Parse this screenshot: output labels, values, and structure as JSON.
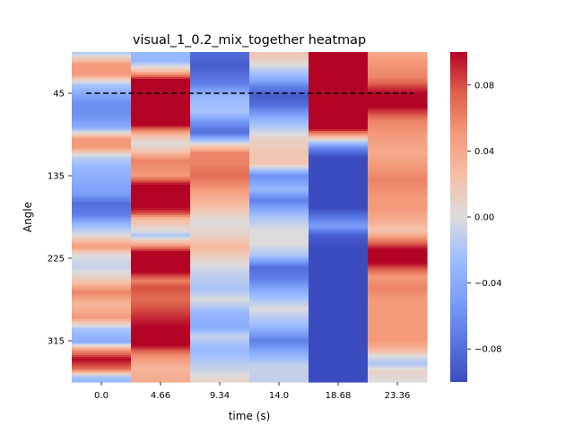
{
  "chart_data": {
    "type": "heatmap",
    "title": "visual_1_0.2_mix_together heatmap",
    "xlabel": "time (s)",
    "ylabel": "Angle",
    "x_tick_labels": [
      "0.0",
      "4.66",
      "9.34",
      "14.0",
      "18.68",
      "23.36"
    ],
    "y_tick_labels": [
      "45",
      "135",
      "225",
      "315"
    ],
    "colorbar_tick_labels": [
      "0.08",
      "0.04",
      "0.00",
      "−0.04",
      "−0.08"
    ],
    "colorbar_ticks": [
      0.08,
      0.04,
      0.0,
      -0.04,
      -0.08
    ],
    "value_range": [
      -0.1,
      0.1
    ],
    "colormap": "coolwarm",
    "reference_line_angle": 45,
    "angle_range": [
      0,
      360
    ],
    "columns": [
      {
        "x": 0.0,
        "angles": [
          0,
          14,
          24,
          36,
          55,
          68,
          82,
          95,
          104,
          114,
          125,
          140,
          155,
          165,
          178,
          188,
          200,
          212,
          222,
          235,
          250,
          262,
          276,
          290,
          302,
          316,
          325,
          335,
          346,
          354,
          360
        ],
        "values": [
          -0.02,
          0.05,
          0.05,
          -0.02,
          -0.06,
          -0.06,
          -0.04,
          0.05,
          0.05,
          -0.01,
          -0.03,
          -0.04,
          -0.05,
          -0.08,
          -0.07,
          -0.03,
          0.0,
          0.05,
          0.0,
          -0.01,
          0.02,
          0.06,
          0.03,
          0.05,
          -0.02,
          -0.04,
          0.05,
          0.1,
          0.07,
          -0.02,
          -0.03
        ]
      },
      {
        "x": 4.66,
        "angles": [
          0,
          10,
          20,
          30,
          40,
          60,
          80,
          90,
          100,
          108,
          118,
          135,
          145,
          170,
          176,
          182,
          195,
          200,
          205,
          210,
          218,
          240,
          250,
          256,
          270,
          300,
          320,
          330,
          345,
          360
        ],
        "values": [
          -0.03,
          -0.03,
          0.02,
          0.1,
          0.1,
          0.1,
          0.1,
          0.03,
          0.0,
          0.02,
          0.06,
          0.05,
          0.1,
          0.1,
          0.08,
          0.03,
          0.0,
          -0.02,
          0.01,
          0.04,
          0.1,
          0.1,
          0.06,
          0.08,
          0.07,
          0.1,
          0.1,
          0.06,
          0.03,
          0.04
        ]
      },
      {
        "x": 9.34,
        "angles": [
          0,
          15,
          35,
          45,
          50,
          65,
          78,
          88,
          100,
          110,
          122,
          135,
          150,
          165,
          185,
          200,
          212,
          225,
          240,
          260,
          270,
          285,
          300,
          310,
          325,
          345,
          360
        ],
        "values": [
          -0.08,
          -0.09,
          -0.07,
          -0.04,
          -0.03,
          -0.02,
          -0.06,
          -0.08,
          0.0,
          0.06,
          0.06,
          0.07,
          0.05,
          0.03,
          0.0,
          0.01,
          0.03,
          0.01,
          -0.01,
          -0.02,
          0.0,
          -0.03,
          -0.04,
          -0.01,
          -0.03,
          -0.01,
          0.01
        ]
      },
      {
        "x": 14.0,
        "angles": [
          0,
          10,
          22,
          30,
          38,
          48,
          58,
          75,
          95,
          110,
          122,
          135,
          150,
          162,
          180,
          195,
          210,
          222,
          235,
          248,
          260,
          280,
          300,
          315,
          328,
          342,
          360
        ],
        "values": [
          0.02,
          0.01,
          -0.02,
          -0.04,
          -0.07,
          -0.09,
          -0.08,
          -0.03,
          0.01,
          0.02,
          0.02,
          -0.06,
          -0.03,
          -0.07,
          -0.02,
          0.0,
          0.0,
          -0.02,
          -0.08,
          -0.07,
          -0.04,
          0.0,
          -0.03,
          -0.07,
          -0.04,
          -0.01,
          -0.01
        ]
      },
      {
        "x": 18.68,
        "angles": [
          0,
          20,
          40,
          60,
          84,
          90,
          96,
          100,
          106,
          115,
          140,
          170,
          190,
          200,
          215,
          240,
          275,
          310,
          330,
          345,
          360
        ],
        "values": [
          0.1,
          0.1,
          0.1,
          0.1,
          0.1,
          0.05,
          0.0,
          -0.03,
          -0.07,
          -0.1,
          -0.1,
          -0.1,
          -0.05,
          -0.09,
          -0.1,
          -0.1,
          -0.1,
          -0.1,
          -0.1,
          -0.1,
          -0.1
        ]
      },
      {
        "x": 23.36,
        "angles": [
          0,
          10,
          28,
          45,
          60,
          75,
          90,
          110,
          125,
          140,
          160,
          170,
          182,
          195,
          205,
          215,
          230,
          245,
          258,
          270,
          300,
          315,
          325,
          332,
          340,
          348,
          360
        ],
        "values": [
          0.04,
          0.05,
          0.06,
          0.1,
          0.1,
          0.06,
          0.05,
          0.04,
          0.05,
          0.06,
          0.05,
          0.05,
          0.04,
          0.02,
          0.06,
          0.1,
          0.1,
          0.05,
          0.06,
          0.05,
          0.05,
          0.05,
          0.03,
          0.0,
          -0.02,
          0.01,
          0.0
        ]
      }
    ]
  }
}
